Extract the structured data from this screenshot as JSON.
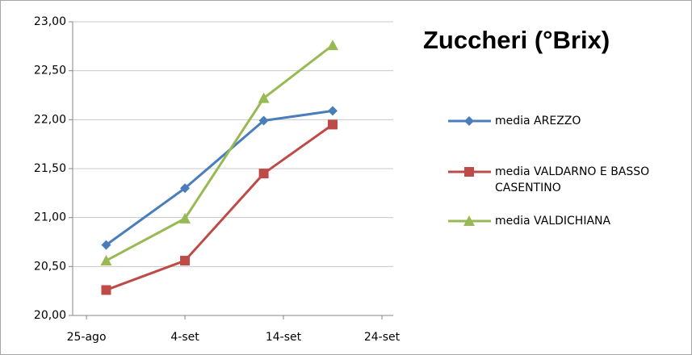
{
  "chart_data": {
    "type": "line",
    "title": "Zuccheri (°Brix)",
    "x": [
      2,
      10,
      18,
      25
    ],
    "xlim": [
      -1.4,
      31.15
    ],
    "xticks": [
      {
        "value": 0,
        "label": "25-ago"
      },
      {
        "value": 10,
        "label": "4-set"
      },
      {
        "value": 20,
        "label": "14-set"
      },
      {
        "value": 30,
        "label": "24-set"
      }
    ],
    "ylim": [
      20,
      23
    ],
    "yticks": [
      {
        "value": 20,
        "label": "20,00"
      },
      {
        "value": 20.5,
        "label": "20,50"
      },
      {
        "value": 21,
        "label": "21,00"
      },
      {
        "value": 21.5,
        "label": "21,50"
      },
      {
        "value": 22,
        "label": "22,00"
      },
      {
        "value": 22.5,
        "label": "22,50"
      },
      {
        "value": 23,
        "label": "23,00"
      }
    ],
    "grid": true,
    "legend": "right",
    "series": [
      {
        "name": "media AREZZO",
        "color": "#4a7ebb",
        "marker": "diamond",
        "values": [
          20.72,
          21.3,
          21.99,
          22.09
        ]
      },
      {
        "name": "media VALDARNO E BASSO CASENTINO",
        "color": "#be4b48",
        "marker": "square",
        "values": [
          20.26,
          20.56,
          21.45,
          21.95
        ]
      },
      {
        "name": "media VALDICHIANA",
        "color": "#98b954",
        "marker": "triangle",
        "values": [
          20.56,
          20.99,
          22.22,
          22.76
        ]
      }
    ]
  }
}
